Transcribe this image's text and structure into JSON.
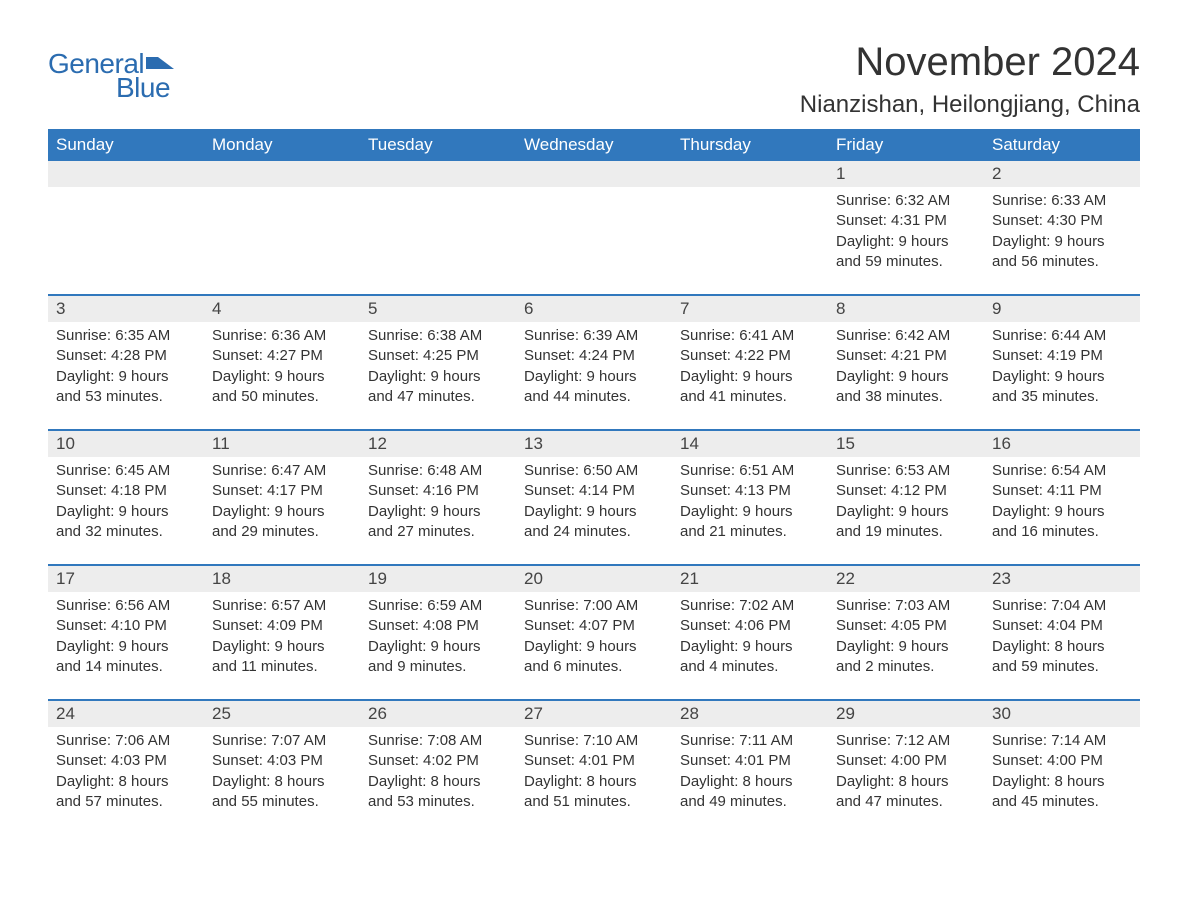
{
  "brand": {
    "text_general": "General",
    "text_blue": "Blue",
    "flag_color": "#2b6cb0"
  },
  "title": {
    "month": "November 2024",
    "location": "Nianzishan, Heilongjiang, China"
  },
  "colors": {
    "header_bg": "#3178bd",
    "header_text": "#ffffff",
    "row_divider": "#3178bd",
    "daynum_bg": "#ededed",
    "text": "#333333",
    "background": "#ffffff"
  },
  "typography": {
    "month_title_size_pt": 30,
    "location_size_pt": 18,
    "weekday_size_pt": 13,
    "daynum_size_pt": 13,
    "detail_size_pt": 11
  },
  "weekdays": [
    "Sunday",
    "Monday",
    "Tuesday",
    "Wednesday",
    "Thursday",
    "Friday",
    "Saturday"
  ],
  "weeks": [
    [
      {
        "empty": true
      },
      {
        "empty": true
      },
      {
        "empty": true
      },
      {
        "empty": true
      },
      {
        "empty": true
      },
      {
        "day": "1",
        "sunrise": "Sunrise: 6:32 AM",
        "sunset": "Sunset: 4:31 PM",
        "daylight": "Daylight: 9 hours and 59 minutes."
      },
      {
        "day": "2",
        "sunrise": "Sunrise: 6:33 AM",
        "sunset": "Sunset: 4:30 PM",
        "daylight": "Daylight: 9 hours and 56 minutes."
      }
    ],
    [
      {
        "day": "3",
        "sunrise": "Sunrise: 6:35 AM",
        "sunset": "Sunset: 4:28 PM",
        "daylight": "Daylight: 9 hours and 53 minutes."
      },
      {
        "day": "4",
        "sunrise": "Sunrise: 6:36 AM",
        "sunset": "Sunset: 4:27 PM",
        "daylight": "Daylight: 9 hours and 50 minutes."
      },
      {
        "day": "5",
        "sunrise": "Sunrise: 6:38 AM",
        "sunset": "Sunset: 4:25 PM",
        "daylight": "Daylight: 9 hours and 47 minutes."
      },
      {
        "day": "6",
        "sunrise": "Sunrise: 6:39 AM",
        "sunset": "Sunset: 4:24 PM",
        "daylight": "Daylight: 9 hours and 44 minutes."
      },
      {
        "day": "7",
        "sunrise": "Sunrise: 6:41 AM",
        "sunset": "Sunset: 4:22 PM",
        "daylight": "Daylight: 9 hours and 41 minutes."
      },
      {
        "day": "8",
        "sunrise": "Sunrise: 6:42 AM",
        "sunset": "Sunset: 4:21 PM",
        "daylight": "Daylight: 9 hours and 38 minutes."
      },
      {
        "day": "9",
        "sunrise": "Sunrise: 6:44 AM",
        "sunset": "Sunset: 4:19 PM",
        "daylight": "Daylight: 9 hours and 35 minutes."
      }
    ],
    [
      {
        "day": "10",
        "sunrise": "Sunrise: 6:45 AM",
        "sunset": "Sunset: 4:18 PM",
        "daylight": "Daylight: 9 hours and 32 minutes."
      },
      {
        "day": "11",
        "sunrise": "Sunrise: 6:47 AM",
        "sunset": "Sunset: 4:17 PM",
        "daylight": "Daylight: 9 hours and 29 minutes."
      },
      {
        "day": "12",
        "sunrise": "Sunrise: 6:48 AM",
        "sunset": "Sunset: 4:16 PM",
        "daylight": "Daylight: 9 hours and 27 minutes."
      },
      {
        "day": "13",
        "sunrise": "Sunrise: 6:50 AM",
        "sunset": "Sunset: 4:14 PM",
        "daylight": "Daylight: 9 hours and 24 minutes."
      },
      {
        "day": "14",
        "sunrise": "Sunrise: 6:51 AM",
        "sunset": "Sunset: 4:13 PM",
        "daylight": "Daylight: 9 hours and 21 minutes."
      },
      {
        "day": "15",
        "sunrise": "Sunrise: 6:53 AM",
        "sunset": "Sunset: 4:12 PM",
        "daylight": "Daylight: 9 hours and 19 minutes."
      },
      {
        "day": "16",
        "sunrise": "Sunrise: 6:54 AM",
        "sunset": "Sunset: 4:11 PM",
        "daylight": "Daylight: 9 hours and 16 minutes."
      }
    ],
    [
      {
        "day": "17",
        "sunrise": "Sunrise: 6:56 AM",
        "sunset": "Sunset: 4:10 PM",
        "daylight": "Daylight: 9 hours and 14 minutes."
      },
      {
        "day": "18",
        "sunrise": "Sunrise: 6:57 AM",
        "sunset": "Sunset: 4:09 PM",
        "daylight": "Daylight: 9 hours and 11 minutes."
      },
      {
        "day": "19",
        "sunrise": "Sunrise: 6:59 AM",
        "sunset": "Sunset: 4:08 PM",
        "daylight": "Daylight: 9 hours and 9 minutes."
      },
      {
        "day": "20",
        "sunrise": "Sunrise: 7:00 AM",
        "sunset": "Sunset: 4:07 PM",
        "daylight": "Daylight: 9 hours and 6 minutes."
      },
      {
        "day": "21",
        "sunrise": "Sunrise: 7:02 AM",
        "sunset": "Sunset: 4:06 PM",
        "daylight": "Daylight: 9 hours and 4 minutes."
      },
      {
        "day": "22",
        "sunrise": "Sunrise: 7:03 AM",
        "sunset": "Sunset: 4:05 PM",
        "daylight": "Daylight: 9 hours and 2 minutes."
      },
      {
        "day": "23",
        "sunrise": "Sunrise: 7:04 AM",
        "sunset": "Sunset: 4:04 PM",
        "daylight": "Daylight: 8 hours and 59 minutes."
      }
    ],
    [
      {
        "day": "24",
        "sunrise": "Sunrise: 7:06 AM",
        "sunset": "Sunset: 4:03 PM",
        "daylight": "Daylight: 8 hours and 57 minutes."
      },
      {
        "day": "25",
        "sunrise": "Sunrise: 7:07 AM",
        "sunset": "Sunset: 4:03 PM",
        "daylight": "Daylight: 8 hours and 55 minutes."
      },
      {
        "day": "26",
        "sunrise": "Sunrise: 7:08 AM",
        "sunset": "Sunset: 4:02 PM",
        "daylight": "Daylight: 8 hours and 53 minutes."
      },
      {
        "day": "27",
        "sunrise": "Sunrise: 7:10 AM",
        "sunset": "Sunset: 4:01 PM",
        "daylight": "Daylight: 8 hours and 51 minutes."
      },
      {
        "day": "28",
        "sunrise": "Sunrise: 7:11 AM",
        "sunset": "Sunset: 4:01 PM",
        "daylight": "Daylight: 8 hours and 49 minutes."
      },
      {
        "day": "29",
        "sunrise": "Sunrise: 7:12 AM",
        "sunset": "Sunset: 4:00 PM",
        "daylight": "Daylight: 8 hours and 47 minutes."
      },
      {
        "day": "30",
        "sunrise": "Sunrise: 7:14 AM",
        "sunset": "Sunset: 4:00 PM",
        "daylight": "Daylight: 8 hours and 45 minutes."
      }
    ]
  ]
}
